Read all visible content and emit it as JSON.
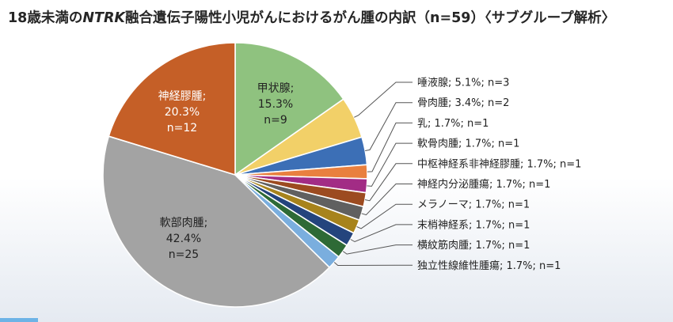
{
  "chart_data": {
    "type": "pie",
    "title_prefix": "18歳未満の",
    "title_italic": "NTRK",
    "title_suffix": "融合遺伝子陽性小児がんにおけるがん腫の内訳（n=59）〈サブグループ解析〉",
    "start_angle_deg": 0,
    "direction": "clockwise",
    "slices": [
      {
        "name": "甲状腺",
        "percent": 15.3,
        "n": 9,
        "pct_text": "15.3%",
        "n_text": "n=9",
        "color": "#8fc27f",
        "label": "inside",
        "text_color": "#222222"
      },
      {
        "name": "唾液腺",
        "percent": 5.1,
        "n": 3,
        "text": "唾液腺; 5.1%; n=3",
        "color": "#f2d068",
        "label": "outside"
      },
      {
        "name": "骨肉腫",
        "percent": 3.4,
        "n": 2,
        "text": "骨肉腫; 3.4%; n=2",
        "color": "#3c6fb6",
        "label": "outside"
      },
      {
        "name": "乳",
        "percent": 1.7,
        "n": 1,
        "text": "乳; 1.7%; n=1",
        "color": "#e9803f",
        "label": "outside"
      },
      {
        "name": "軟骨肉腫",
        "percent": 1.7,
        "n": 1,
        "text": "軟骨肉腫; 1.7%; n=1",
        "color": "#a22c85",
        "label": "outside"
      },
      {
        "name": "中枢神経系非神経膠腫",
        "percent": 1.7,
        "n": 1,
        "text": "中枢神経系非神経膠腫; 1.7%; n=1",
        "color": "#9c4b20",
        "label": "outside"
      },
      {
        "name": "神経内分泌腫瘍",
        "percent": 1.7,
        "n": 1,
        "text": "神経内分泌腫瘍; 1.7%; n=1",
        "color": "#606060",
        "label": "outside"
      },
      {
        "name": "メラノーマ",
        "percent": 1.7,
        "n": 1,
        "text": "メラノーマ; 1.7%; n=1",
        "color": "#a7831c",
        "label": "outside"
      },
      {
        "name": "末梢神経系",
        "percent": 1.7,
        "n": 1,
        "text": "末梢神経系; 1.7%; n=1",
        "color": "#24447d",
        "label": "outside"
      },
      {
        "name": "横紋筋肉腫",
        "percent": 1.7,
        "n": 1,
        "text": "横紋筋肉腫; 1.7%; n=1",
        "color": "#2e6a36",
        "label": "outside"
      },
      {
        "name": "独立性線維性腫瘍",
        "percent": 1.7,
        "n": 1,
        "text": "独立性線維性腫瘍; 1.7%; n=1",
        "color": "#7aaede",
        "label": "outside"
      },
      {
        "name": "軟部肉腫",
        "percent": 42.4,
        "n": 25,
        "pct_text": "42.4%",
        "n_text": "n=25",
        "color": "#a3a3a3",
        "label": "inside",
        "text_color": "#222222"
      },
      {
        "name": "神経膠腫",
        "percent": 20.3,
        "n": 12,
        "pct_text": "20.3%",
        "n_text": "n=12",
        "color": "#c55f27",
        "label": "inside",
        "text_color": "#ffffff"
      }
    ]
  }
}
